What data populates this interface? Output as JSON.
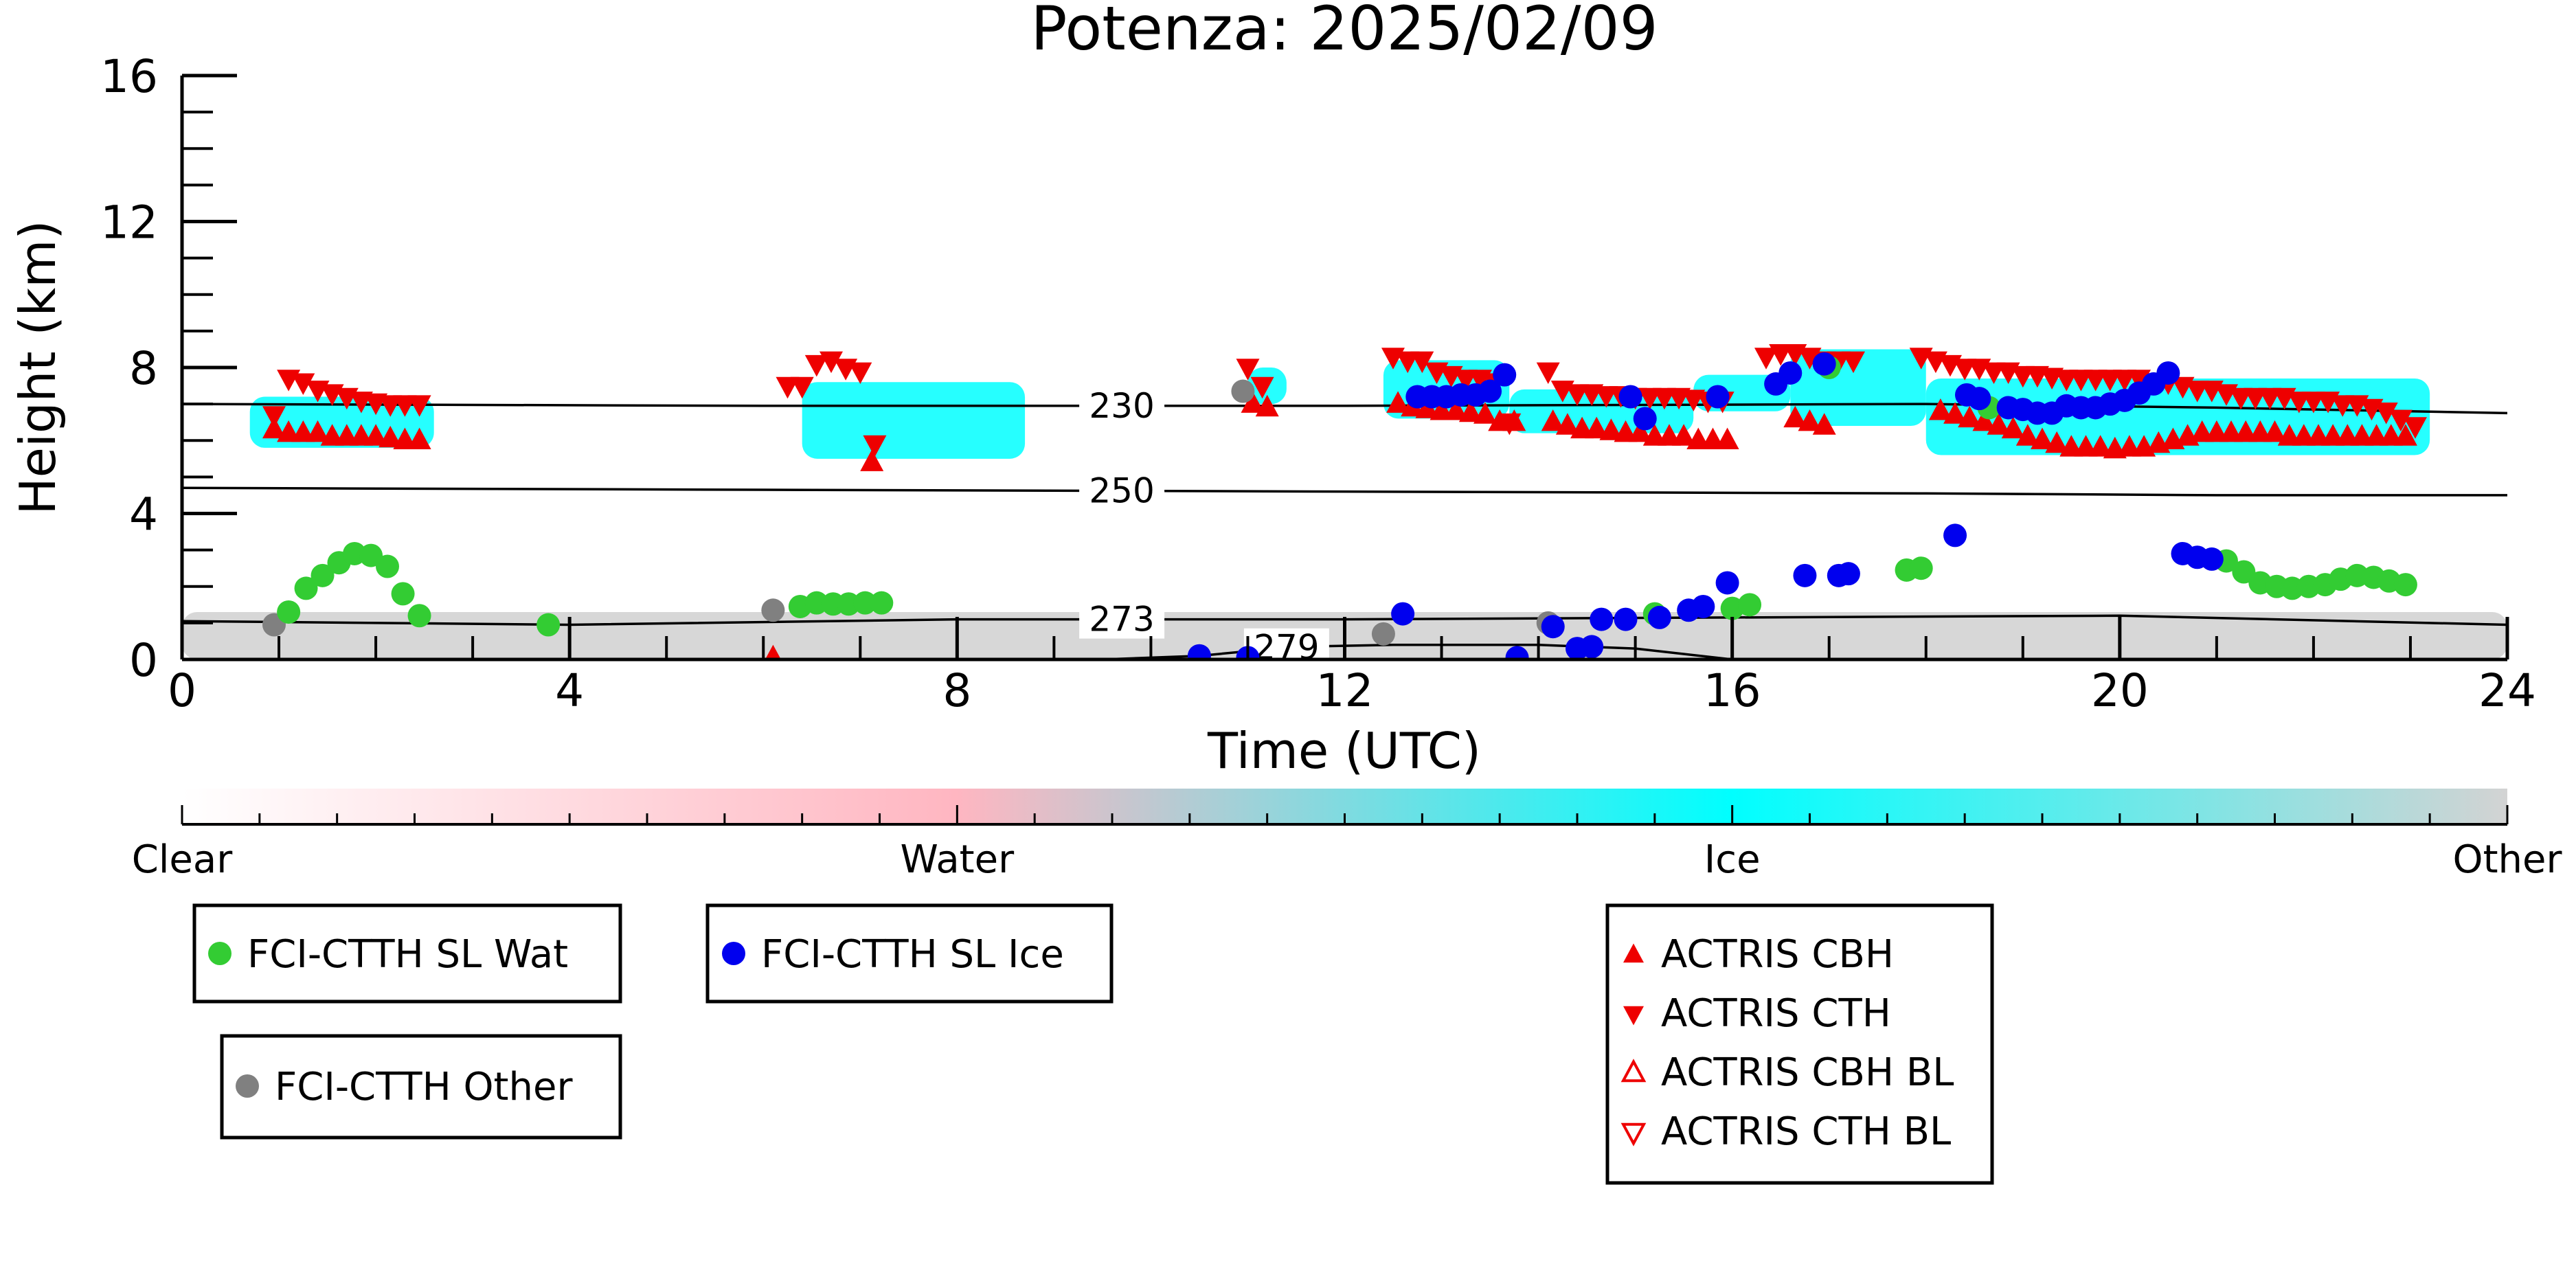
{
  "chart_data": {
    "type": "scatter",
    "title": "Potenza: 2025/02/09",
    "xlabel": "Time (UTC)",
    "ylabel": "Height (km)",
    "xlim": [
      0,
      24
    ],
    "ylim": [
      0,
      16
    ],
    "x_ticks": [
      "0",
      "4",
      "8",
      "12",
      "16",
      "20",
      "24"
    ],
    "y_ticks": [
      "0",
      "4",
      "8",
      "12",
      "16"
    ],
    "colorbar": {
      "labels": [
        "Clear",
        "Water",
        "Ice",
        "Other"
      ],
      "colors": [
        "#ffffff",
        "#ffb6c1",
        "#00ffff",
        "#d3d3d3"
      ]
    },
    "contours": [
      {
        "label": "230",
        "points": [
          [
            0,
            7.0
          ],
          [
            6,
            6.95
          ],
          [
            12,
            6.95
          ],
          [
            18,
            7.0
          ],
          [
            21,
            6.9
          ],
          [
            24,
            6.75
          ]
        ]
      },
      {
        "label": "250",
        "points": [
          [
            0,
            4.7
          ],
          [
            6,
            4.65
          ],
          [
            12,
            4.6
          ],
          [
            18,
            4.55
          ],
          [
            21,
            4.5
          ],
          [
            24,
            4.5
          ]
        ]
      },
      {
        "label": "273",
        "points": [
          [
            0,
            1.05
          ],
          [
            4,
            0.95
          ],
          [
            8,
            1.1
          ],
          [
            12,
            1.1
          ],
          [
            16,
            1.15
          ],
          [
            20,
            1.2
          ],
          [
            24,
            0.95
          ]
        ]
      },
      {
        "label": "279",
        "points": [
          [
            9.5,
            0
          ],
          [
            10.5,
            0.1
          ],
          [
            11.5,
            0.35
          ],
          [
            12.5,
            0.4
          ],
          [
            14,
            0.4
          ],
          [
            15,
            0.3
          ],
          [
            16,
            0
          ]
        ]
      }
    ],
    "radar_regions": [
      {
        "class": "Ice",
        "x": [
          0.7,
          2.6
        ],
        "y": [
          5.8,
          7.2
        ]
      },
      {
        "class": "Ice",
        "x": [
          6.4,
          8.7
        ],
        "y": [
          5.5,
          7.6
        ]
      },
      {
        "class": "Ice",
        "x": [
          11.0,
          11.4
        ],
        "y": [
          7.0,
          8.0
        ]
      },
      {
        "class": "Ice",
        "x": [
          12.4,
          13.7
        ],
        "y": [
          6.6,
          8.2
        ]
      },
      {
        "class": "Ice",
        "x": [
          13.7,
          15.6
        ],
        "y": [
          6.2,
          7.4
        ]
      },
      {
        "class": "Ice",
        "x": [
          15.6,
          16.6
        ],
        "y": [
          6.8,
          7.8
        ]
      },
      {
        "class": "Ice",
        "x": [
          16.6,
          18.0
        ],
        "y": [
          6.4,
          8.5
        ]
      },
      {
        "class": "Ice",
        "x": [
          18.0,
          23.2
        ],
        "y": [
          5.6,
          7.7
        ]
      },
      {
        "class": "Other",
        "x": [
          0.0,
          24.0
        ],
        "y": [
          0.0,
          1.3
        ]
      }
    ],
    "series": [
      {
        "name": "FCI-CTTH SL Wat",
        "color": "#33cc33",
        "marker": "circle",
        "x": [
          1.1,
          1.28,
          1.45,
          1.62,
          1.78,
          1.95,
          2.12,
          2.28,
          2.45,
          3.78,
          6.38,
          6.55,
          6.72,
          6.88,
          7.05,
          7.22,
          15.2,
          16.0,
          16.18,
          17.0,
          18.65,
          17.8,
          17.95,
          21.1,
          21.28,
          21.45,
          21.62,
          21.78,
          21.95,
          22.12,
          22.28,
          22.45,
          22.62,
          22.78,
          22.95
        ],
        "y": [
          1.3,
          1.95,
          2.3,
          2.65,
          2.9,
          2.85,
          2.55,
          1.8,
          1.2,
          0.95,
          1.45,
          1.55,
          1.52,
          1.52,
          1.55,
          1.55,
          1.25,
          1.4,
          1.5,
          8.0,
          6.9,
          2.45,
          2.5,
          2.7,
          2.4,
          2.1,
          2.0,
          1.95,
          2.0,
          2.05,
          2.2,
          2.3,
          2.25,
          2.15,
          2.05
        ]
      },
      {
        "name": "FCI-CTTH SL Ice",
        "color": "#0000ee",
        "marker": "circle",
        "x": [
          10.5,
          11.0,
          12.6,
          12.75,
          12.9,
          13.05,
          13.2,
          13.35,
          13.5,
          13.65,
          13.78,
          14.15,
          14.4,
          14.55,
          14.65,
          14.9,
          14.95,
          15.1,
          15.25,
          15.55,
          15.7,
          15.85,
          15.95,
          16.45,
          16.6,
          16.75,
          16.95,
          17.1,
          17.2,
          18.3,
          18.42,
          18.55,
          18.85,
          19.0,
          19.15,
          19.3,
          19.45,
          19.6,
          19.75,
          19.9,
          20.05,
          20.2,
          20.35,
          20.5,
          20.65,
          20.8,
          20.95
        ],
        "y": [
          0.1,
          0.05,
          1.25,
          7.2,
          7.2,
          7.2,
          7.25,
          7.25,
          7.35,
          7.8,
          0.05,
          0.9,
          0.3,
          0.35,
          1.1,
          1.1,
          7.2,
          6.6,
          1.15,
          1.35,
          1.45,
          7.2,
          2.1,
          7.55,
          7.85,
          2.3,
          8.1,
          2.3,
          2.35,
          3.4,
          7.25,
          7.15,
          6.9,
          6.85,
          6.75,
          6.75,
          6.95,
          6.9,
          6.9,
          7.0,
          7.1,
          7.3,
          7.55,
          7.85,
          2.9,
          2.8,
          2.75
        ]
      },
      {
        "name": "FCI-CTTH Other",
        "color": "#808080",
        "marker": "circle",
        "x": [
          0.95,
          6.1,
          10.95,
          12.4,
          14.1
        ],
        "y": [
          0.95,
          1.35,
          7.35,
          0.7,
          1.0
        ]
      },
      {
        "name": "ACTRIS CBH",
        "color": "#ee0000",
        "marker": "triangle-up",
        "x": [
          0.95,
          1.1,
          1.25,
          1.4,
          1.55,
          1.7,
          1.85,
          2.0,
          2.15,
          2.3,
          2.45,
          6.1,
          7.12,
          11.05,
          11.2,
          12.55,
          12.7,
          12.85,
          13.0,
          13.15,
          13.3,
          13.45,
          13.6,
          13.75,
          14.15,
          14.3,
          14.45,
          14.6,
          14.75,
          14.9,
          15.05,
          15.2,
          15.35,
          15.5,
          15.65,
          15.8,
          15.95,
          16.65,
          16.8,
          16.95,
          18.15,
          18.3,
          18.45,
          18.6,
          18.75,
          18.9,
          19.05,
          19.2,
          19.35,
          19.5,
          19.65,
          19.8,
          19.95,
          20.1,
          20.25,
          20.4,
          20.55,
          20.7,
          20.85,
          21.0,
          21.15,
          21.3,
          21.45,
          21.6,
          21.75,
          21.9,
          22.05,
          22.2,
          22.35,
          22.5,
          22.65,
          22.8,
          22.95
        ],
        "y": [
          6.3,
          6.2,
          6.2,
          6.2,
          6.1,
          6.1,
          6.1,
          6.1,
          6.05,
          6.0,
          6.0,
          0.05,
          5.4,
          7.0,
          6.9,
          7.0,
          6.9,
          6.85,
          6.8,
          6.8,
          6.75,
          6.7,
          6.5,
          6.5,
          6.5,
          6.4,
          6.3,
          6.3,
          6.25,
          6.2,
          6.2,
          6.1,
          6.1,
          6.1,
          6.0,
          6.0,
          6.0,
          6.6,
          6.5,
          6.4,
          6.8,
          6.7,
          6.6,
          6.5,
          6.4,
          6.3,
          6.1,
          6.0,
          5.9,
          5.8,
          5.8,
          5.8,
          5.75,
          5.8,
          5.8,
          5.9,
          6.0,
          6.1,
          6.2,
          6.2,
          6.2,
          6.2,
          6.2,
          6.2,
          6.1,
          6.1,
          6.1,
          6.1,
          6.1,
          6.1,
          6.1,
          6.1,
          6.1
        ]
      },
      {
        "name": "ACTRIS CTH",
        "color": "#ee0000",
        "marker": "triangle-down",
        "x": [
          0.95,
          1.1,
          1.25,
          1.4,
          1.55,
          1.7,
          1.85,
          2.0,
          2.15,
          2.3,
          2.45,
          6.25,
          6.4,
          6.55,
          6.7,
          6.85,
          7.0,
          7.15,
          11.0,
          11.15,
          12.5,
          12.65,
          12.8,
          12.95,
          13.1,
          13.25,
          13.4,
          13.55,
          13.7,
          14.1,
          14.25,
          14.4,
          14.55,
          14.7,
          14.85,
          15.0,
          15.15,
          15.3,
          15.45,
          15.6,
          15.75,
          15.9,
          16.35,
          16.5,
          16.65,
          16.8,
          16.95,
          17.1,
          17.25,
          17.95,
          18.1,
          18.25,
          18.4,
          18.55,
          18.7,
          18.85,
          19.0,
          19.15,
          19.3,
          19.45,
          19.6,
          19.75,
          19.9,
          20.05,
          20.2,
          20.35,
          20.5,
          20.65,
          20.8,
          20.95,
          21.1,
          21.25,
          21.4,
          21.55,
          21.7,
          21.85,
          22.0,
          22.15,
          22.3,
          22.45,
          22.6,
          22.75,
          22.9,
          23.05
        ],
        "y": [
          6.7,
          7.7,
          7.6,
          7.4,
          7.3,
          7.2,
          7.1,
          7.05,
          7.0,
          7.0,
          7.0,
          7.5,
          7.5,
          8.1,
          8.2,
          8.0,
          7.9,
          5.9,
          8.0,
          7.5,
          8.3,
          8.2,
          8.2,
          7.9,
          7.8,
          7.7,
          7.7,
          7.6,
          6.5,
          7.9,
          7.4,
          7.3,
          7.3,
          7.25,
          7.25,
          7.2,
          7.2,
          7.2,
          7.2,
          7.15,
          7.1,
          7.1,
          8.3,
          8.4,
          8.4,
          8.3,
          8.2,
          8.2,
          8.2,
          8.3,
          8.2,
          8.1,
          8.0,
          8.0,
          7.9,
          7.9,
          7.8,
          7.8,
          7.75,
          7.7,
          7.7,
          7.7,
          7.7,
          7.7,
          7.7,
          7.6,
          7.6,
          7.5,
          7.4,
          7.4,
          7.3,
          7.2,
          7.2,
          7.2,
          7.2,
          7.1,
          7.1,
          7.1,
          7.0,
          7.0,
          6.9,
          6.8,
          6.6,
          6.4
        ]
      },
      {
        "name": "ACTRIS CBH BL",
        "color": "#ee0000",
        "marker": "triangle-up-open",
        "x": [],
        "y": []
      },
      {
        "name": "ACTRIS CTH BL",
        "color": "#ee0000",
        "marker": "triangle-down-open",
        "x": [],
        "y": []
      }
    ],
    "grid": false,
    "legend_placement": "bottom"
  }
}
